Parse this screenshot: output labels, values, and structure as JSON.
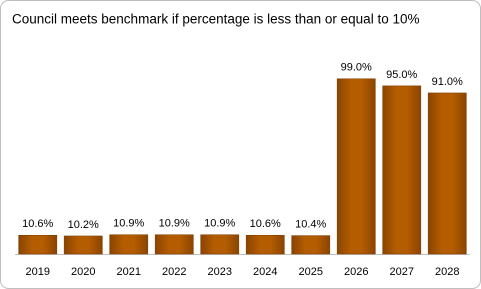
{
  "chart_data": {
    "type": "bar",
    "title": "Council meets benchmark if percentage is less than or equal to 10%",
    "categories": [
      "2019",
      "2020",
      "2021",
      "2022",
      "2023",
      "2024",
      "2025",
      "2026",
      "2027",
      "2028"
    ],
    "values": [
      10.6,
      10.2,
      10.9,
      10.9,
      10.9,
      10.6,
      10.4,
      99.0,
      95.0,
      91.0
    ],
    "value_labels": [
      "10.6%",
      "10.2%",
      "10.9%",
      "10.9%",
      "10.9%",
      "10.6%",
      "10.4%",
      "99.0%",
      "95.0%",
      "91.0%"
    ],
    "color": "#b35c00",
    "ylim": [
      0,
      100
    ]
  }
}
